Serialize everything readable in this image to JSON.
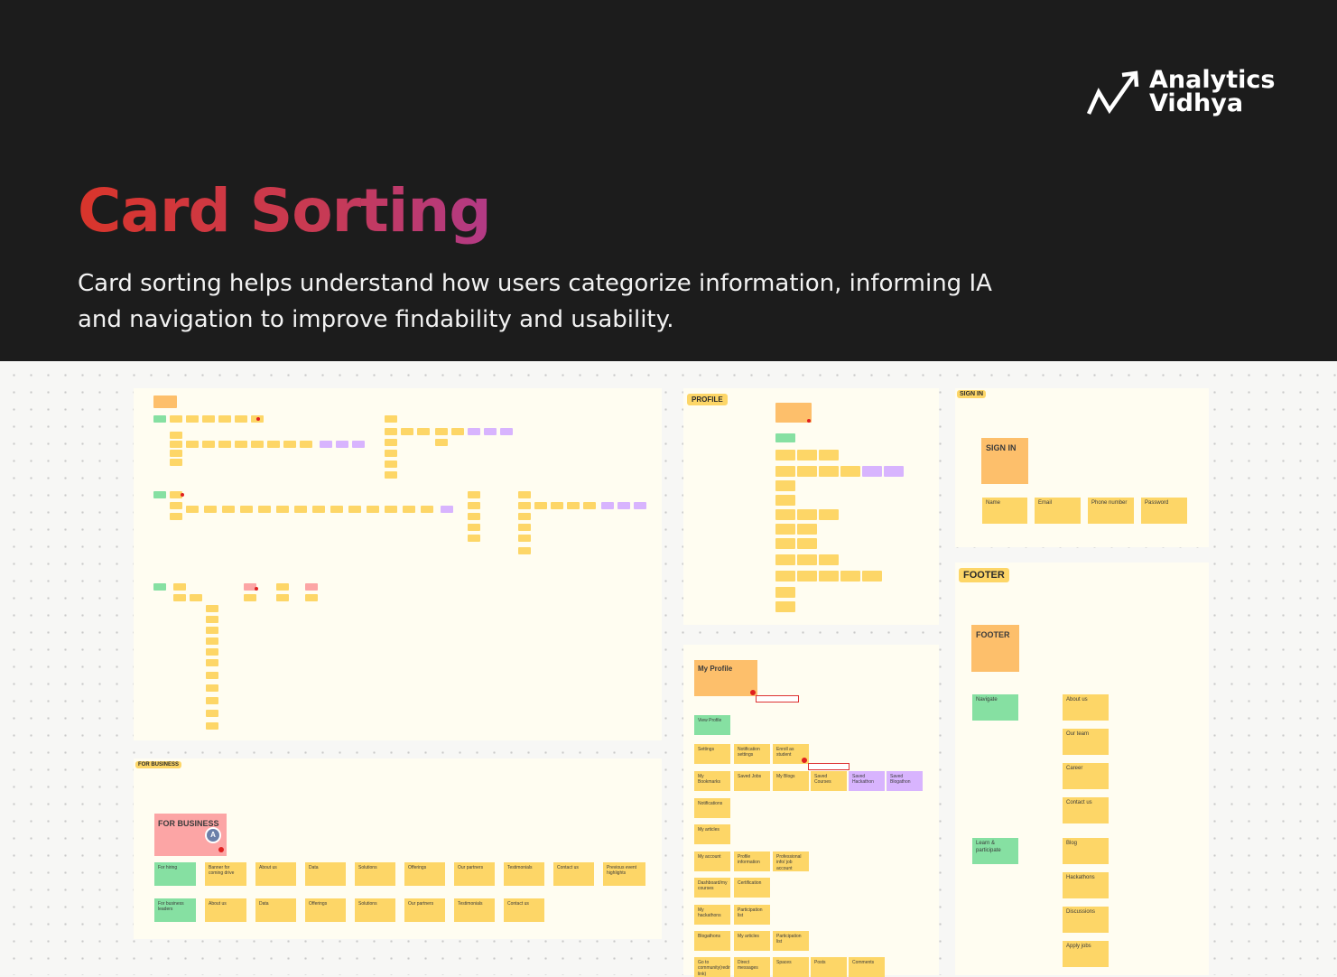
{
  "header": {
    "title": "Card Sorting",
    "subtitle": "Card sorting helps understand how users categorize information, informing IA and navigation to improve findability and usability.",
    "logo_line1": "Analytics",
    "logo_line2": "Vidhya"
  },
  "boards": {
    "profile_tag": "PROFILE",
    "signin_tag": "SIGN IN",
    "footer_tag": "FOOTER",
    "business_tag": "FOR BUSINESS"
  },
  "signin": {
    "title": "SIGN IN",
    "fields": [
      "Name",
      "Email",
      "Phone number",
      "Password"
    ]
  },
  "footer": {
    "title": "FOOTER",
    "groups": [
      "Navigate",
      "Learn & participate"
    ],
    "navigate_items": [
      "About us",
      "Our team",
      "Career",
      "Contact us"
    ],
    "learn_items": [
      "Blog",
      "Hackathons",
      "Discussions",
      "Apply jobs"
    ]
  },
  "business": {
    "title": "FOR BUSINESS",
    "avatar": "A",
    "row1_group": "For hiring",
    "row1": [
      "Banner for coming drive",
      "About us",
      "Data",
      "Solutions",
      "Offerings",
      "Our partners",
      "Testimonials",
      "Contact us",
      "Previous event highlights"
    ],
    "row2_group": "For business leaders",
    "row2": [
      "About us",
      "Data",
      "Offerings",
      "Solutions",
      "Our partners",
      "Testimonials",
      "Contact us"
    ]
  },
  "myprofile": {
    "title": "My Profile",
    "view_profile": "View Profile",
    "settings": "Settings",
    "notification_settings": "Notification settings",
    "enroll": "Enroll as student",
    "bookmarks": "My Bookmarks",
    "saved_jobs": "Saved Jobs",
    "my_blogs": "My Blogs",
    "saved_courses": "Saved Courses",
    "saved_hackathon": "Saved Hackathon",
    "saved_blogathon": "Saved Blogathon",
    "notifications": "Notifications",
    "my_articles": "My articles",
    "my_account": "My account",
    "profile_information": "Profile information",
    "professional_info": "Professional info/ job account",
    "dashboard_courses": "Dashboard/my courses",
    "certification": "Certification",
    "my_hackathons": "My hackathons",
    "participation_list": "Participation list",
    "blogathons": "Blogathons",
    "my_articles_2": "My articles",
    "participation_list_2": "Participation list",
    "community": "Go to community(redirect link)",
    "direct_messages": "Direct messages",
    "spaces": "Spaces",
    "posts": "Posts",
    "comments": "Comments"
  },
  "colors": {
    "header_bg": "#1c1c1c",
    "title_gradient_start": "#d9352b",
    "title_gradient_end": "#b23a86",
    "note_yellow": "#fdd667",
    "note_green": "#86e0a2",
    "note_purple": "#d8b4fe",
    "note_orange": "#fdbf6b",
    "note_pink": "#fca5a5"
  }
}
